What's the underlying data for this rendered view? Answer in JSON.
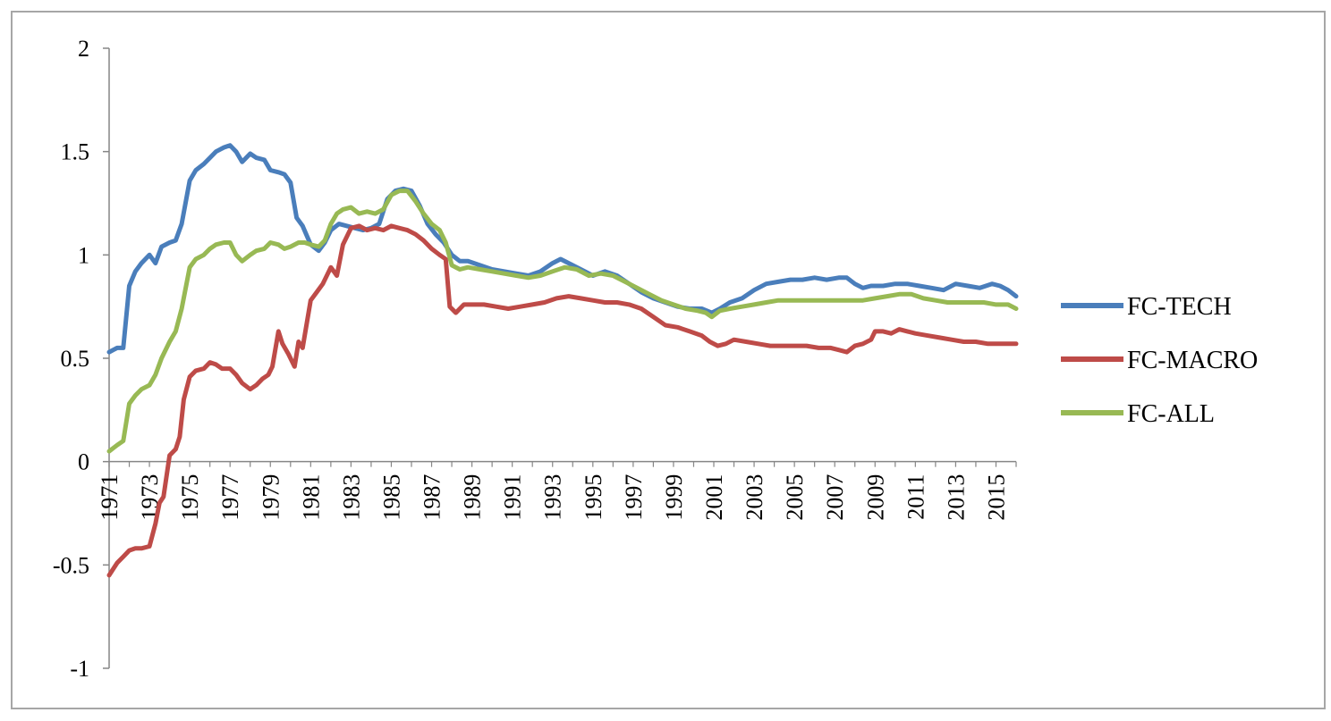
{
  "chart_data": {
    "type": "line",
    "title": "",
    "xlabel": "",
    "ylabel": "",
    "ylim": [
      -1,
      2
    ],
    "xlim": [
      1971,
      2016
    ],
    "yticks": [
      "-1",
      "-0.5",
      "0",
      "0.5",
      "1",
      "1.5",
      "2"
    ],
    "xticks": [
      "1971",
      "1973",
      "1975",
      "1977",
      "1979",
      "1981",
      "1983",
      "1985",
      "1987",
      "1989",
      "1991",
      "1993",
      "1995",
      "1997",
      "1999",
      "2001",
      "2003",
      "2005",
      "2007",
      "2009",
      "2011",
      "2013",
      "2015"
    ],
    "grid": false,
    "legend_position": "right",
    "series": [
      {
        "name": "FC-TECH",
        "color": "#4a7ebb",
        "x": [
          1971.0,
          1971.4,
          1971.7,
          1972.0,
          1972.3,
          1972.6,
          1973.0,
          1973.3,
          1973.6,
          1974.0,
          1974.3,
          1974.6,
          1975.0,
          1975.3,
          1975.7,
          1976.0,
          1976.3,
          1976.7,
          1977.0,
          1977.3,
          1977.6,
          1978.0,
          1978.3,
          1978.7,
          1979.0,
          1979.4,
          1979.7,
          1980.0,
          1980.3,
          1980.6,
          1981.0,
          1981.4,
          1981.7,
          1982.0,
          1982.4,
          1982.8,
          1983.2,
          1983.6,
          1984.0,
          1984.4,
          1984.8,
          1985.2,
          1985.6,
          1986.0,
          1986.4,
          1986.8,
          1987.2,
          1987.6,
          1988.0,
          1988.4,
          1988.8,
          1989.4,
          1990.0,
          1990.6,
          1991.2,
          1991.8,
          1992.4,
          1993.0,
          1993.4,
          1993.8,
          1994.4,
          1995.0,
          1995.6,
          1996.2,
          1996.8,
          1997.4,
          1998.0,
          1998.6,
          1999.2,
          1999.8,
          2000.4,
          2000.9,
          2001.3,
          2001.8,
          2002.4,
          2003.0,
          2003.6,
          2004.2,
          2004.8,
          2005.4,
          2006.0,
          2006.6,
          2007.2,
          2007.6,
          2008.0,
          2008.4,
          2008.8,
          2009.4,
          2010.0,
          2010.6,
          2011.2,
          2011.8,
          2012.4,
          2013.0,
          2013.6,
          2014.2,
          2014.8,
          2015.2,
          2015.6,
          2016.0
        ],
        "values": [
          0.53,
          0.55,
          0.55,
          0.85,
          0.92,
          0.96,
          1.0,
          0.96,
          1.04,
          1.06,
          1.07,
          1.15,
          1.36,
          1.41,
          1.44,
          1.47,
          1.5,
          1.52,
          1.53,
          1.5,
          1.45,
          1.49,
          1.47,
          1.46,
          1.41,
          1.4,
          1.39,
          1.35,
          1.18,
          1.14,
          1.05,
          1.02,
          1.06,
          1.12,
          1.15,
          1.14,
          1.13,
          1.12,
          1.13,
          1.15,
          1.27,
          1.31,
          1.32,
          1.31,
          1.24,
          1.15,
          1.1,
          1.06,
          1.0,
          0.97,
          0.97,
          0.95,
          0.93,
          0.92,
          0.91,
          0.9,
          0.92,
          0.96,
          0.98,
          0.96,
          0.93,
          0.9,
          0.92,
          0.9,
          0.86,
          0.82,
          0.79,
          0.77,
          0.75,
          0.74,
          0.74,
          0.72,
          0.74,
          0.77,
          0.79,
          0.83,
          0.86,
          0.87,
          0.88,
          0.88,
          0.89,
          0.88,
          0.89,
          0.89,
          0.86,
          0.84,
          0.85,
          0.85,
          0.86,
          0.86,
          0.85,
          0.84,
          0.83,
          0.86,
          0.85,
          0.84,
          0.86,
          0.85,
          0.83,
          0.8
        ]
      },
      {
        "name": "FC-MACRO",
        "color": "#be4b48",
        "x": [
          1971.0,
          1971.4,
          1971.7,
          1972.0,
          1972.3,
          1972.6,
          1973.0,
          1973.3,
          1973.5,
          1973.7,
          1974.0,
          1974.3,
          1974.5,
          1974.7,
          1975.0,
          1975.3,
          1975.7,
          1976.0,
          1976.3,
          1976.6,
          1977.0,
          1977.3,
          1977.6,
          1978.0,
          1978.3,
          1978.6,
          1978.9,
          1979.1,
          1979.4,
          1979.6,
          1979.9,
          1980.2,
          1980.4,
          1980.6,
          1981.0,
          1981.3,
          1981.6,
          1982.0,
          1982.3,
          1982.6,
          1983.0,
          1983.4,
          1983.8,
          1984.2,
          1984.6,
          1985.0,
          1985.4,
          1985.8,
          1986.2,
          1986.6,
          1987.0,
          1987.4,
          1987.7,
          1987.9,
          1988.2,
          1988.6,
          1989.0,
          1989.6,
          1990.2,
          1990.8,
          1991.4,
          1992.0,
          1992.6,
          1993.2,
          1993.8,
          1994.4,
          1995.0,
          1995.6,
          1996.2,
          1996.8,
          1997.4,
          1998.0,
          1998.6,
          1999.2,
          1999.8,
          2000.4,
          2000.8,
          2001.2,
          2001.6,
          2002.0,
          2002.6,
          2003.2,
          2003.8,
          2004.4,
          2005.0,
          2005.6,
          2006.2,
          2006.8,
          2007.2,
          2007.6,
          2008.0,
          2008.4,
          2008.8,
          2009.0,
          2009.4,
          2009.8,
          2010.2,
          2010.6,
          2011.0,
          2011.6,
          2012.2,
          2012.8,
          2013.4,
          2014.0,
          2014.6,
          2015.2,
          2015.6,
          2016.0
        ],
        "values": [
          -0.55,
          -0.49,
          -0.46,
          -0.43,
          -0.42,
          -0.42,
          -0.41,
          -0.3,
          -0.2,
          -0.17,
          0.03,
          0.06,
          0.12,
          0.3,
          0.41,
          0.44,
          0.45,
          0.48,
          0.47,
          0.45,
          0.45,
          0.42,
          0.38,
          0.35,
          0.37,
          0.4,
          0.42,
          0.46,
          0.63,
          0.57,
          0.52,
          0.46,
          0.58,
          0.55,
          0.78,
          0.82,
          0.86,
          0.94,
          0.9,
          1.05,
          1.13,
          1.14,
          1.12,
          1.13,
          1.12,
          1.14,
          1.13,
          1.12,
          1.1,
          1.07,
          1.03,
          1.0,
          0.98,
          0.75,
          0.72,
          0.76,
          0.76,
          0.76,
          0.75,
          0.74,
          0.75,
          0.76,
          0.77,
          0.79,
          0.8,
          0.79,
          0.78,
          0.77,
          0.77,
          0.76,
          0.74,
          0.7,
          0.66,
          0.65,
          0.63,
          0.61,
          0.58,
          0.56,
          0.57,
          0.59,
          0.58,
          0.57,
          0.56,
          0.56,
          0.56,
          0.56,
          0.55,
          0.55,
          0.54,
          0.53,
          0.56,
          0.57,
          0.59,
          0.63,
          0.63,
          0.62,
          0.64,
          0.63,
          0.62,
          0.61,
          0.6,
          0.59,
          0.58,
          0.58,
          0.57,
          0.57,
          0.57,
          0.57
        ]
      },
      {
        "name": "FC-ALL",
        "color": "#98b954",
        "x": [
          1971.0,
          1971.4,
          1971.7,
          1972.0,
          1972.3,
          1972.6,
          1973.0,
          1973.3,
          1973.6,
          1974.0,
          1974.3,
          1974.6,
          1975.0,
          1975.3,
          1975.7,
          1976.0,
          1976.3,
          1976.7,
          1977.0,
          1977.3,
          1977.6,
          1978.0,
          1978.3,
          1978.7,
          1979.0,
          1979.4,
          1979.7,
          1980.0,
          1980.4,
          1980.7,
          1981.0,
          1981.4,
          1981.7,
          1982.0,
          1982.3,
          1982.6,
          1983.0,
          1983.4,
          1983.8,
          1984.2,
          1984.6,
          1985.0,
          1985.4,
          1985.8,
          1986.2,
          1986.6,
          1987.0,
          1987.4,
          1987.7,
          1988.0,
          1988.4,
          1988.8,
          1989.4,
          1990.0,
          1990.6,
          1991.2,
          1991.8,
          1992.4,
          1993.0,
          1993.6,
          1994.2,
          1994.8,
          1995.4,
          1996.0,
          1996.6,
          1997.2,
          1997.8,
          1998.4,
          1999.0,
          1999.6,
          2000.2,
          2000.6,
          2000.9,
          2001.3,
          2001.8,
          2002.4,
          2003.0,
          2003.6,
          2004.2,
          2004.8,
          2005.4,
          2006.0,
          2006.6,
          2007.2,
          2007.8,
          2008.4,
          2009.0,
          2009.6,
          2010.2,
          2010.8,
          2011.4,
          2012.0,
          2012.6,
          2013.2,
          2013.8,
          2014.4,
          2015.0,
          2015.6,
          2016.0
        ],
        "values": [
          0.05,
          0.08,
          0.1,
          0.28,
          0.32,
          0.35,
          0.37,
          0.42,
          0.5,
          0.58,
          0.63,
          0.74,
          0.94,
          0.98,
          1.0,
          1.03,
          1.05,
          1.06,
          1.06,
          1.0,
          0.97,
          1.0,
          1.02,
          1.03,
          1.06,
          1.05,
          1.03,
          1.04,
          1.06,
          1.06,
          1.05,
          1.04,
          1.07,
          1.15,
          1.2,
          1.22,
          1.23,
          1.2,
          1.21,
          1.2,
          1.22,
          1.29,
          1.31,
          1.31,
          1.26,
          1.2,
          1.15,
          1.12,
          1.06,
          0.95,
          0.93,
          0.94,
          0.93,
          0.92,
          0.91,
          0.9,
          0.89,
          0.9,
          0.92,
          0.94,
          0.93,
          0.9,
          0.91,
          0.9,
          0.87,
          0.84,
          0.81,
          0.78,
          0.76,
          0.74,
          0.73,
          0.72,
          0.7,
          0.73,
          0.74,
          0.75,
          0.76,
          0.77,
          0.78,
          0.78,
          0.78,
          0.78,
          0.78,
          0.78,
          0.78,
          0.78,
          0.79,
          0.8,
          0.81,
          0.81,
          0.79,
          0.78,
          0.77,
          0.77,
          0.77,
          0.77,
          0.76,
          0.76,
          0.74
        ]
      }
    ]
  }
}
